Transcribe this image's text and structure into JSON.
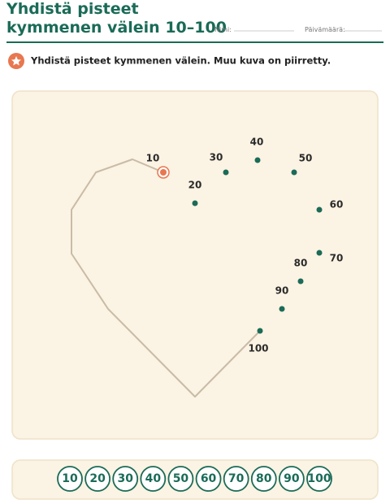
{
  "header": {
    "title_lines": [
      "Yhdistä pisteet",
      "kymmenen välein 10–100"
    ],
    "name_label": "Nimi:",
    "date_label": "Päivämäärä:"
  },
  "instruction": "Yhdistä pisteet kymmenen välein. Muu kuva on piirretty.",
  "dots": [
    {
      "label": "10"
    },
    {
      "label": "20"
    },
    {
      "label": "30"
    },
    {
      "label": "40"
    },
    {
      "label": "50"
    },
    {
      "label": "60"
    },
    {
      "label": "70"
    },
    {
      "label": "80"
    },
    {
      "label": "90"
    },
    {
      "label": "100"
    }
  ],
  "number_strip": [
    "10",
    "20",
    "30",
    "40",
    "50",
    "60",
    "70",
    "80",
    "90",
    "100"
  ]
}
